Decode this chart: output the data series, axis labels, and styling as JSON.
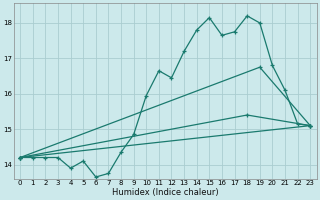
{
  "xlabel": "Humidex (Indice chaleur)",
  "background_color": "#cce9eb",
  "grid_color": "#aacdd0",
  "line_color": "#1a7a6e",
  "xlim": [
    -0.5,
    23.5
  ],
  "ylim": [
    13.6,
    18.55
  ],
  "xticks": [
    0,
    1,
    2,
    3,
    4,
    5,
    6,
    7,
    8,
    9,
    10,
    11,
    12,
    13,
    14,
    15,
    16,
    17,
    18,
    19,
    20,
    21,
    22,
    23
  ],
  "yticks": [
    14,
    15,
    16,
    17,
    18
  ],
  "line1_x": [
    0,
    1,
    2,
    3,
    4,
    5,
    6,
    7,
    8,
    9,
    10,
    11,
    12,
    13,
    14,
    15,
    16,
    17,
    18,
    19,
    20,
    21,
    22,
    23
  ],
  "line1_y": [
    14.2,
    14.2,
    14.2,
    14.2,
    13.9,
    14.1,
    13.65,
    13.75,
    14.35,
    14.85,
    15.95,
    16.65,
    16.45,
    17.2,
    17.8,
    18.15,
    17.65,
    17.75,
    18.2,
    18.0,
    16.8,
    16.1,
    15.15,
    15.1
  ],
  "line2_x": [
    0,
    23
  ],
  "line2_y": [
    14.2,
    15.1
  ],
  "line3_x": [
    0,
    19,
    23
  ],
  "line3_y": [
    14.2,
    16.75,
    15.1
  ],
  "line4_x": [
    0,
    18,
    23
  ],
  "line4_y": [
    14.2,
    15.4,
    15.1
  ],
  "xlabel_fontsize": 6.0,
  "tick_fontsize": 5.0
}
